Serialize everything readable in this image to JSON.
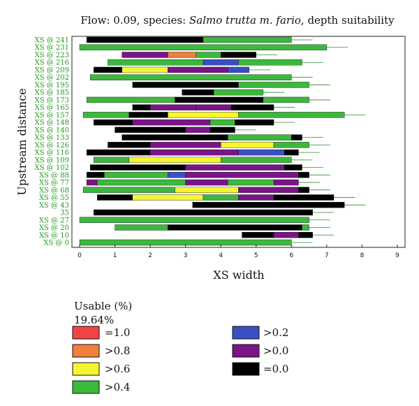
{
  "chart_data": {
    "type": "bar",
    "title_prefix": "Flow: 0.09, species: ",
    "title_species": "Salmo trutta m. fario",
    "title_suffix": ", depth suitability",
    "xlabel": "XS width",
    "ylabel": "Upstream distance",
    "xlim": [
      0,
      9
    ],
    "x_ticks": [
      "0",
      "1",
      "2",
      "3",
      "4",
      "5",
      "6",
      "7",
      "8",
      "9"
    ],
    "y_tick_labels": [
      "XS @ 241",
      "XS @ 231",
      "XS @ 223",
      "XS @ 216",
      "XS @ 209",
      "XS @ 202",
      "XS @ 195",
      "XS @ 185",
      "XS @ 173",
      "XS @ 165",
      "XS @ 157",
      "XS @ 148",
      "XS @ 140",
      "XS @ 133",
      "XS @ 126",
      "XS @ 116",
      "XS @ 109",
      "XS @ 102",
      "XS @ 88",
      "XS @ 77",
      "XS @ 68",
      "XS @ 55",
      "XS @ 43",
      "35",
      "XS @ 27",
      "XS @ 20",
      "XS @ 10",
      "XS @ 0"
    ],
    "legend_title": "Usable (%)",
    "usable_percent": "19.64%",
    "legend": [
      {
        "label": "=1.0",
        "color": "#f24444"
      },
      {
        "label": ">0.8",
        "color": "#f07f3c"
      },
      {
        "label": ">0.6",
        "color": "#f5f532"
      },
      {
        "label": ">0.4",
        "color": "#3cb83c"
      },
      {
        "label": ">0.2",
        "color": "#3b4fc4"
      },
      {
        "label": ">0.0",
        "color": "#7a1487"
      },
      {
        "label": "=0.0",
        "color": "#000000"
      }
    ],
    "cross_sections": [
      {
        "label": "XS @ 241",
        "segments": [
          [
            0.2,
            3.5,
            "=0.0"
          ],
          [
            3.5,
            6.0,
            ">0.4"
          ]
        ]
      },
      {
        "label": "XS @ 231",
        "segments": [
          [
            0.0,
            7.0,
            ">0.4"
          ]
        ]
      },
      {
        "label": "XS @ 223",
        "segments": [
          [
            1.2,
            2.5,
            ">0.0"
          ],
          [
            2.5,
            3.3,
            ">0.8"
          ],
          [
            3.3,
            4.0,
            ">0.4"
          ],
          [
            4.0,
            5.0,
            "=0.0"
          ]
        ]
      },
      {
        "label": "XS @ 216",
        "segments": [
          [
            0.8,
            3.5,
            ">0.4"
          ],
          [
            3.5,
            4.5,
            ">0.2"
          ],
          [
            4.5,
            6.3,
            ">0.4"
          ]
        ]
      },
      {
        "label": "XS @ 209",
        "segments": [
          [
            0.4,
            1.2,
            "=0.0"
          ],
          [
            1.2,
            2.5,
            ">0.6"
          ],
          [
            2.5,
            4.2,
            ">0.0"
          ],
          [
            4.2,
            4.8,
            ">0.2"
          ]
        ]
      },
      {
        "label": "XS @ 202",
        "segments": [
          [
            0.3,
            6.0,
            ">0.4"
          ]
        ]
      },
      {
        "label": "XS @ 195",
        "segments": [
          [
            1.5,
            4.5,
            "=0.0"
          ],
          [
            4.5,
            6.5,
            ">0.4"
          ]
        ]
      },
      {
        "label": "XS @ 185",
        "segments": [
          [
            2.9,
            3.8,
            "=0.0"
          ],
          [
            3.8,
            5.2,
            ">0.4"
          ]
        ]
      },
      {
        "label": "XS @ 173",
        "segments": [
          [
            0.2,
            2.7,
            ">0.4"
          ],
          [
            2.7,
            5.2,
            "=0.0"
          ],
          [
            5.2,
            6.5,
            ">0.4"
          ]
        ]
      },
      {
        "label": "XS @ 165",
        "segments": [
          [
            1.5,
            2.0,
            "=0.0"
          ],
          [
            2.0,
            3.3,
            ">0.0"
          ],
          [
            3.3,
            4.3,
            ">0.0"
          ],
          [
            4.3,
            5.5,
            "=0.0"
          ]
        ]
      },
      {
        "label": "XS @ 157",
        "segments": [
          [
            0.1,
            1.4,
            ">0.4"
          ],
          [
            1.4,
            2.5,
            "=0.0"
          ],
          [
            2.5,
            4.5,
            ">0.6"
          ],
          [
            4.5,
            7.5,
            ">0.4"
          ]
        ]
      },
      {
        "label": "XS @ 148",
        "segments": [
          [
            0.4,
            1.5,
            "=0.0"
          ],
          [
            1.5,
            3.7,
            ">0.0"
          ],
          [
            3.7,
            4.4,
            ">0.4"
          ],
          [
            4.4,
            5.5,
            "=0.0"
          ]
        ]
      },
      {
        "label": "XS @ 140",
        "segments": [
          [
            1.0,
            3.0,
            "=0.0"
          ],
          [
            3.0,
            3.7,
            ">0.0"
          ],
          [
            3.7,
            4.4,
            "=0.0"
          ]
        ]
      },
      {
        "label": "XS @ 133",
        "segments": [
          [
            1.2,
            4.2,
            "=0.0"
          ],
          [
            4.2,
            6.0,
            ">0.4"
          ],
          [
            6.0,
            6.3,
            "=0.0"
          ]
        ]
      },
      {
        "label": "XS @ 126",
        "segments": [
          [
            0.8,
            2.0,
            "=0.0"
          ],
          [
            2.0,
            4.0,
            ">0.0"
          ],
          [
            4.0,
            5.5,
            ">0.6"
          ],
          [
            5.5,
            6.5,
            ">0.4"
          ]
        ]
      },
      {
        "label": "XS @ 116",
        "segments": [
          [
            0.2,
            2.0,
            "=0.0"
          ],
          [
            2.0,
            4.5,
            ">0.0"
          ],
          [
            4.5,
            5.8,
            ">0.2"
          ],
          [
            5.8,
            6.2,
            "=0.0"
          ]
        ]
      },
      {
        "label": "XS @ 109",
        "segments": [
          [
            0.4,
            1.4,
            ">0.4"
          ],
          [
            1.4,
            4.0,
            ">0.6"
          ],
          [
            4.0,
            6.0,
            ">0.4"
          ]
        ]
      },
      {
        "label": "XS @ 102",
        "segments": [
          [
            0.3,
            3.0,
            "=0.0"
          ],
          [
            3.0,
            5.8,
            ">0.0"
          ],
          [
            5.8,
            6.3,
            "=0.0"
          ]
        ]
      },
      {
        "label": "XS @ 88",
        "segments": [
          [
            0.2,
            0.7,
            "=0.0"
          ],
          [
            0.7,
            2.5,
            ">0.4"
          ],
          [
            2.5,
            3.0,
            ">0.2"
          ],
          [
            3.0,
            6.2,
            ">0.0"
          ],
          [
            6.2,
            6.5,
            "=0.0"
          ]
        ]
      },
      {
        "label": "XS @ 77",
        "segments": [
          [
            0.2,
            0.5,
            ">0.0"
          ],
          [
            0.5,
            3.0,
            ">0.4"
          ],
          [
            3.0,
            4.2,
            ">0.0"
          ],
          [
            4.2,
            5.5,
            ">0.4"
          ],
          [
            5.5,
            6.2,
            ">0.0"
          ]
        ]
      },
      {
        "label": "XS @ 68",
        "segments": [
          [
            0.1,
            2.7,
            ">0.4"
          ],
          [
            2.7,
            4.5,
            ">0.6"
          ],
          [
            4.5,
            6.2,
            ">0.0"
          ],
          [
            6.2,
            6.5,
            "=0.0"
          ]
        ]
      },
      {
        "label": "XS @ 55",
        "segments": [
          [
            0.5,
            1.5,
            "=0.0"
          ],
          [
            1.5,
            3.5,
            ">0.6"
          ],
          [
            3.5,
            4.5,
            ">0.4"
          ],
          [
            4.5,
            5.5,
            ">0.0"
          ],
          [
            5.5,
            7.2,
            "=0.0"
          ]
        ]
      },
      {
        "label": "XS @ 43",
        "segments": [
          [
            3.2,
            4.3,
            "=0.0"
          ],
          [
            4.3,
            7.5,
            "=0.0"
          ]
        ]
      },
      {
        "label": "35",
        "segments": [
          [
            0.4,
            6.6,
            "=0.0"
          ]
        ]
      },
      {
        "label": "XS @ 27",
        "segments": [
          [
            0.0,
            6.5,
            ">0.4"
          ]
        ]
      },
      {
        "label": "XS @ 20",
        "segments": [
          [
            1.0,
            2.5,
            ">0.4"
          ],
          [
            2.5,
            6.3,
            "=0.0"
          ],
          [
            6.3,
            6.5,
            ">0.4"
          ]
        ]
      },
      {
        "label": "XS @ 10",
        "segments": [
          [
            4.6,
            5.5,
            "=0.0"
          ],
          [
            5.5,
            6.2,
            ">0.0"
          ],
          [
            6.2,
            6.6,
            "=0.0"
          ]
        ]
      },
      {
        "label": "XS @ 0",
        "segments": [
          [
            0.0,
            6.0,
            ">0.4"
          ]
        ]
      }
    ]
  }
}
